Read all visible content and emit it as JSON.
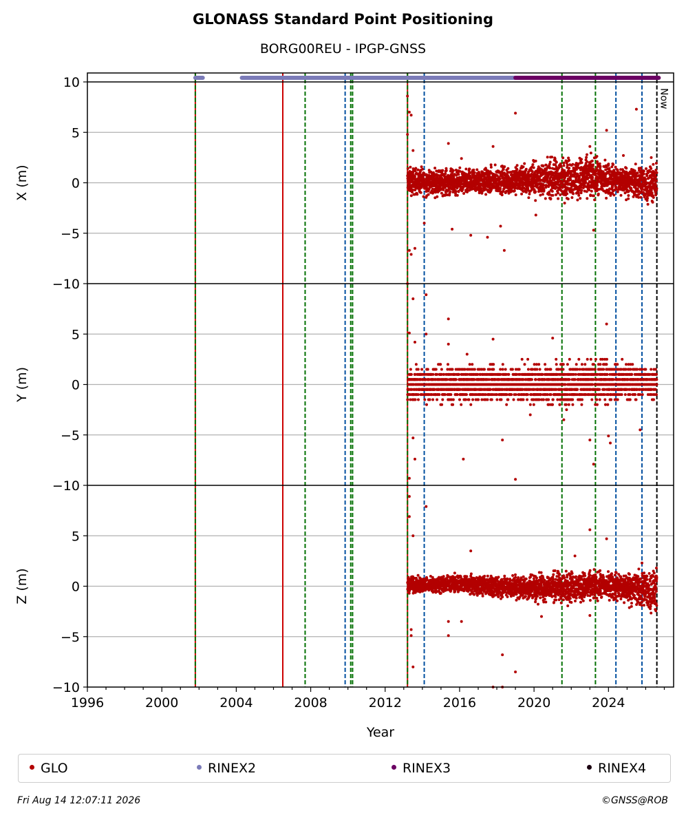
{
  "chart_data": {
    "type": "scatter",
    "title": "GLONASS Standard Point Positioning",
    "subtitle": "BORG00REU - IPGP-GNSS",
    "xlabel": "Year",
    "xlim": [
      1996,
      2027.5
    ],
    "x_ticks": [
      "1996",
      "2000",
      "2004",
      "2008",
      "2012",
      "2016",
      "2020",
      "2024"
    ],
    "grid": "horizontal",
    "panels": [
      {
        "ylabel": "X (m)",
        "ylim": [
          -10,
          10
        ],
        "y_ticks": [
          "−10",
          "−5",
          "0",
          "5",
          "10"
        ]
      },
      {
        "ylabel": "Y (m)",
        "ylim": [
          -10,
          10
        ],
        "y_ticks": [
          "−10",
          "−5",
          "0",
          "5",
          "10"
        ]
      },
      {
        "ylabel": "Z (m)",
        "ylim": [
          -10,
          10
        ],
        "y_ticks": [
          "−10",
          "−5",
          "0",
          "5",
          "10"
        ]
      }
    ],
    "series": [
      {
        "name": "GLO",
        "color": "#b30000",
        "x_start": 2013.2,
        "x_end": 2026.6,
        "X_band": [
          [
            2013.2,
            -1.5,
            1.8
          ],
          [
            2016.0,
            -1.5,
            1.5
          ],
          [
            2019.0,
            -1.5,
            2.0
          ],
          [
            2021.0,
            -2.0,
            2.8
          ],
          [
            2023.0,
            -2.0,
            3.0
          ],
          [
            2024.5,
            -1.5,
            2.0
          ],
          [
            2026.6,
            -2.5,
            2.0
          ]
        ],
        "Y_band": [
          [
            2013.2,
            -2.0,
            2.0
          ],
          [
            2016.0,
            -2.0,
            2.0
          ],
          [
            2019.0,
            -2.0,
            2.2
          ],
          [
            2021.5,
            -2.5,
            2.6
          ],
          [
            2024.0,
            -2.0,
            2.6
          ],
          [
            2026.6,
            -1.5,
            2.0
          ]
        ],
        "Z_band": [
          [
            2013.2,
            -0.8,
            1.0
          ],
          [
            2016.0,
            -0.8,
            1.3
          ],
          [
            2019.0,
            -1.5,
            1.2
          ],
          [
            2021.5,
            -2.0,
            1.8
          ],
          [
            2024.0,
            -1.5,
            1.6
          ],
          [
            2026.6,
            -3.0,
            2.0
          ]
        ],
        "X_outliers": [
          [
            2013.2,
            8.6
          ],
          [
            2013.3,
            7.0
          ],
          [
            2013.4,
            6.7
          ],
          [
            2013.3,
            -6.7
          ],
          [
            2013.4,
            -7.1
          ],
          [
            2013.6,
            -6.5
          ],
          [
            2013.2,
            4.8
          ],
          [
            2013.5,
            3.2
          ],
          [
            2014.1,
            -4.0
          ],
          [
            2015.4,
            3.9
          ],
          [
            2015.6,
            -4.6
          ],
          [
            2016.1,
            2.4
          ],
          [
            2016.6,
            -5.2
          ],
          [
            2017.5,
            -5.4
          ],
          [
            2017.8,
            3.6
          ],
          [
            2018.2,
            -4.3
          ],
          [
            2018.4,
            -6.7
          ],
          [
            2019.0,
            6.9
          ],
          [
            2020.1,
            -3.2
          ],
          [
            2023.0,
            3.6
          ],
          [
            2023.2,
            -4.7
          ],
          [
            2023.9,
            5.2
          ],
          [
            2024.8,
            2.7
          ],
          [
            2025.5,
            7.3
          ],
          [
            2026.3,
            2.5
          ]
        ],
        "Y_outliers": [
          [
            2013.2,
            10.0
          ],
          [
            2013.5,
            8.5
          ],
          [
            2014.2,
            8.9
          ],
          [
            2013.3,
            5.1
          ],
          [
            2013.6,
            4.2
          ],
          [
            2014.2,
            5.0
          ],
          [
            2013.5,
            -5.3
          ],
          [
            2013.6,
            -7.4
          ],
          [
            2013.3,
            -9.3
          ],
          [
            2015.4,
            6.5
          ],
          [
            2015.4,
            4.0
          ],
          [
            2016.2,
            -7.4
          ],
          [
            2016.4,
            3.0
          ],
          [
            2017.8,
            4.5
          ],
          [
            2018.3,
            -5.5
          ],
          [
            2019.0,
            -9.4
          ],
          [
            2019.8,
            -3.0
          ],
          [
            2021.0,
            4.6
          ],
          [
            2021.6,
            -3.5
          ],
          [
            2023.0,
            -5.5
          ],
          [
            2023.2,
            -7.9
          ],
          [
            2023.9,
            6.0
          ],
          [
            2024.0,
            -5.1
          ],
          [
            2024.1,
            -5.8
          ],
          [
            2025.7,
            -4.5
          ]
        ],
        "Z_outliers": [
          [
            2013.3,
            8.9
          ],
          [
            2013.3,
            6.9
          ],
          [
            2013.5,
            5.0
          ],
          [
            2013.5,
            -8.0
          ],
          [
            2013.4,
            -4.9
          ],
          [
            2013.4,
            -4.3
          ],
          [
            2014.2,
            7.9
          ],
          [
            2015.4,
            -3.5
          ],
          [
            2015.4,
            -4.9
          ],
          [
            2016.1,
            -3.5
          ],
          [
            2016.6,
            3.5
          ],
          [
            2017.8,
            -10.0
          ],
          [
            2018.3,
            -10.0
          ],
          [
            2018.3,
            -6.8
          ],
          [
            2019.0,
            -8.5
          ],
          [
            2020.4,
            -3.0
          ],
          [
            2022.2,
            3.0
          ],
          [
            2023.0,
            5.6
          ],
          [
            2023.0,
            -2.9
          ],
          [
            2023.9,
            4.7
          ],
          [
            2025.8,
            2.3
          ]
        ]
      },
      {
        "name": "RINEX2",
        "color": "#7b7bb8",
        "segments": [
          [
            2001.8,
            2002.2
          ],
          [
            2004.3,
            2019.0
          ]
        ]
      },
      {
        "name": "RINEX3",
        "color": "#6b0063",
        "segments": [
          [
            2019.0,
            2026.7
          ]
        ]
      },
      {
        "name": "RINEX4",
        "color": "#1a0010",
        "segments": []
      }
    ],
    "event_lines": [
      {
        "x": 2001.8,
        "color": "#cc0000",
        "style": "solid"
      },
      {
        "x": 2001.8,
        "color": "#007000",
        "style": "dashed"
      },
      {
        "x": 2006.5,
        "color": "#cc0000",
        "style": "solid"
      },
      {
        "x": 2007.7,
        "color": "#007000",
        "style": "dashed"
      },
      {
        "x": 2009.85,
        "color": "#0050a0",
        "style": "dashed"
      },
      {
        "x": 2010.15,
        "color": "#007000",
        "style": "dashed"
      },
      {
        "x": 2010.25,
        "color": "#007000",
        "style": "dashed"
      },
      {
        "x": 2013.2,
        "color": "#cc0000",
        "style": "solid"
      },
      {
        "x": 2013.2,
        "color": "#007000",
        "style": "dashed"
      },
      {
        "x": 2014.1,
        "color": "#0050a0",
        "style": "dashed"
      },
      {
        "x": 2021.5,
        "color": "#007000",
        "style": "dashed"
      },
      {
        "x": 2023.3,
        "color": "#007000",
        "style": "dashed"
      },
      {
        "x": 2024.4,
        "color": "#0050a0",
        "style": "dashed"
      },
      {
        "x": 2025.8,
        "color": "#0050a0",
        "style": "dashed"
      },
      {
        "x": 2026.6,
        "color": "#000000",
        "style": "dashed"
      }
    ],
    "now_x": 2026.6,
    "now_label": "Now",
    "legend_position": "bottom"
  },
  "footer": {
    "timestamp": "Fri Aug 14 12:07:11 2026",
    "credit": "©GNSS@ROB"
  }
}
